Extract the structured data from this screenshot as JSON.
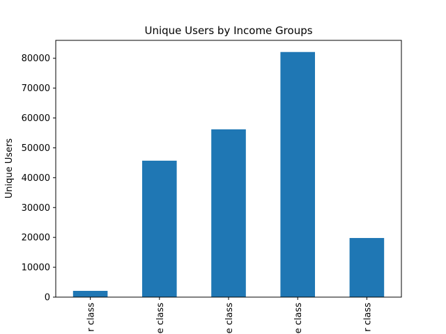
{
  "chart_data": {
    "type": "bar",
    "title": "Unique Users by Income Groups",
    "xlabel": "",
    "ylabel": "Unique Users",
    "categories": [
      "r class",
      "e class",
      "e class",
      "e class",
      "r class"
    ],
    "values": [
      2100,
      45700,
      56200,
      82100,
      19800
    ],
    "ylim": [
      0,
      86000
    ],
    "yticks": [
      0,
      10000,
      20000,
      30000,
      40000,
      50000,
      60000,
      70000,
      80000
    ],
    "bar_color": "#1f77b4",
    "grid": false,
    "legend": "none"
  }
}
